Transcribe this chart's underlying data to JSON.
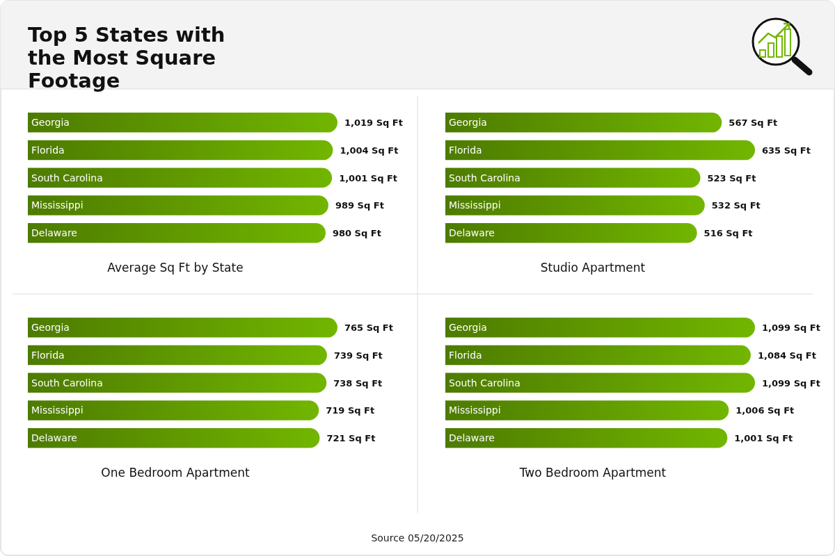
{
  "chart_data": [
    {
      "type": "other",
      "title": "Top 5 States with the Most Square Footage",
      "annotations": [
        "Source 05/20/2025"
      ]
    },
    {
      "type": "bar",
      "orientation": "horizontal",
      "title": "Average Sq Ft by State",
      "categories": [
        "Georgia",
        "Florida",
        "South Carolina",
        "Mississippi",
        "Delaware"
      ],
      "values": [
        1019,
        1004,
        1001,
        989,
        980
      ],
      "value_labels": [
        "1,019 Sq Ft",
        "1,004 Sq Ft",
        "1,001 Sq Ft",
        "989 Sq Ft",
        "980 Sq Ft"
      ],
      "color": "#72b600"
    },
    {
      "type": "bar",
      "orientation": "horizontal",
      "title": "Studio Apartment",
      "categories": [
        "Georgia",
        "Florida",
        "South Carolina",
        "Mississippi",
        "Delaware"
      ],
      "values": [
        567,
        635,
        523,
        532,
        516
      ],
      "value_labels": [
        "567 Sq Ft",
        "635 Sq Ft",
        "523 Sq Ft",
        "532 Sq Ft",
        "516 Sq Ft"
      ],
      "color": "#72b600"
    },
    {
      "type": "bar",
      "orientation": "horizontal",
      "title": "One Bedroom Apartment",
      "categories": [
        "Georgia",
        "Florida",
        "South Carolina",
        "Mississippi",
        "Delaware"
      ],
      "values": [
        765,
        739,
        738,
        719,
        721
      ],
      "value_labels": [
        "765 Sq Ft",
        "739 Sq Ft",
        "738 Sq Ft",
        "719 Sq Ft",
        "721 Sq Ft"
      ],
      "color": "#72b600"
    },
    {
      "type": "bar",
      "orientation": "horizontal",
      "title": "Two Bedroom Apartment",
      "categories": [
        "Georgia",
        "Florida",
        "South Carolina",
        "Mississippi",
        "Delaware"
      ],
      "values": [
        1099,
        1084,
        1099,
        1006,
        1001
      ],
      "value_labels": [
        "1,099 Sq Ft",
        "1,084 Sq Ft",
        "1,099 Sq Ft",
        "1,006 Sq Ft",
        "1,001 Sq Ft"
      ],
      "color": "#72b600"
    }
  ]
}
